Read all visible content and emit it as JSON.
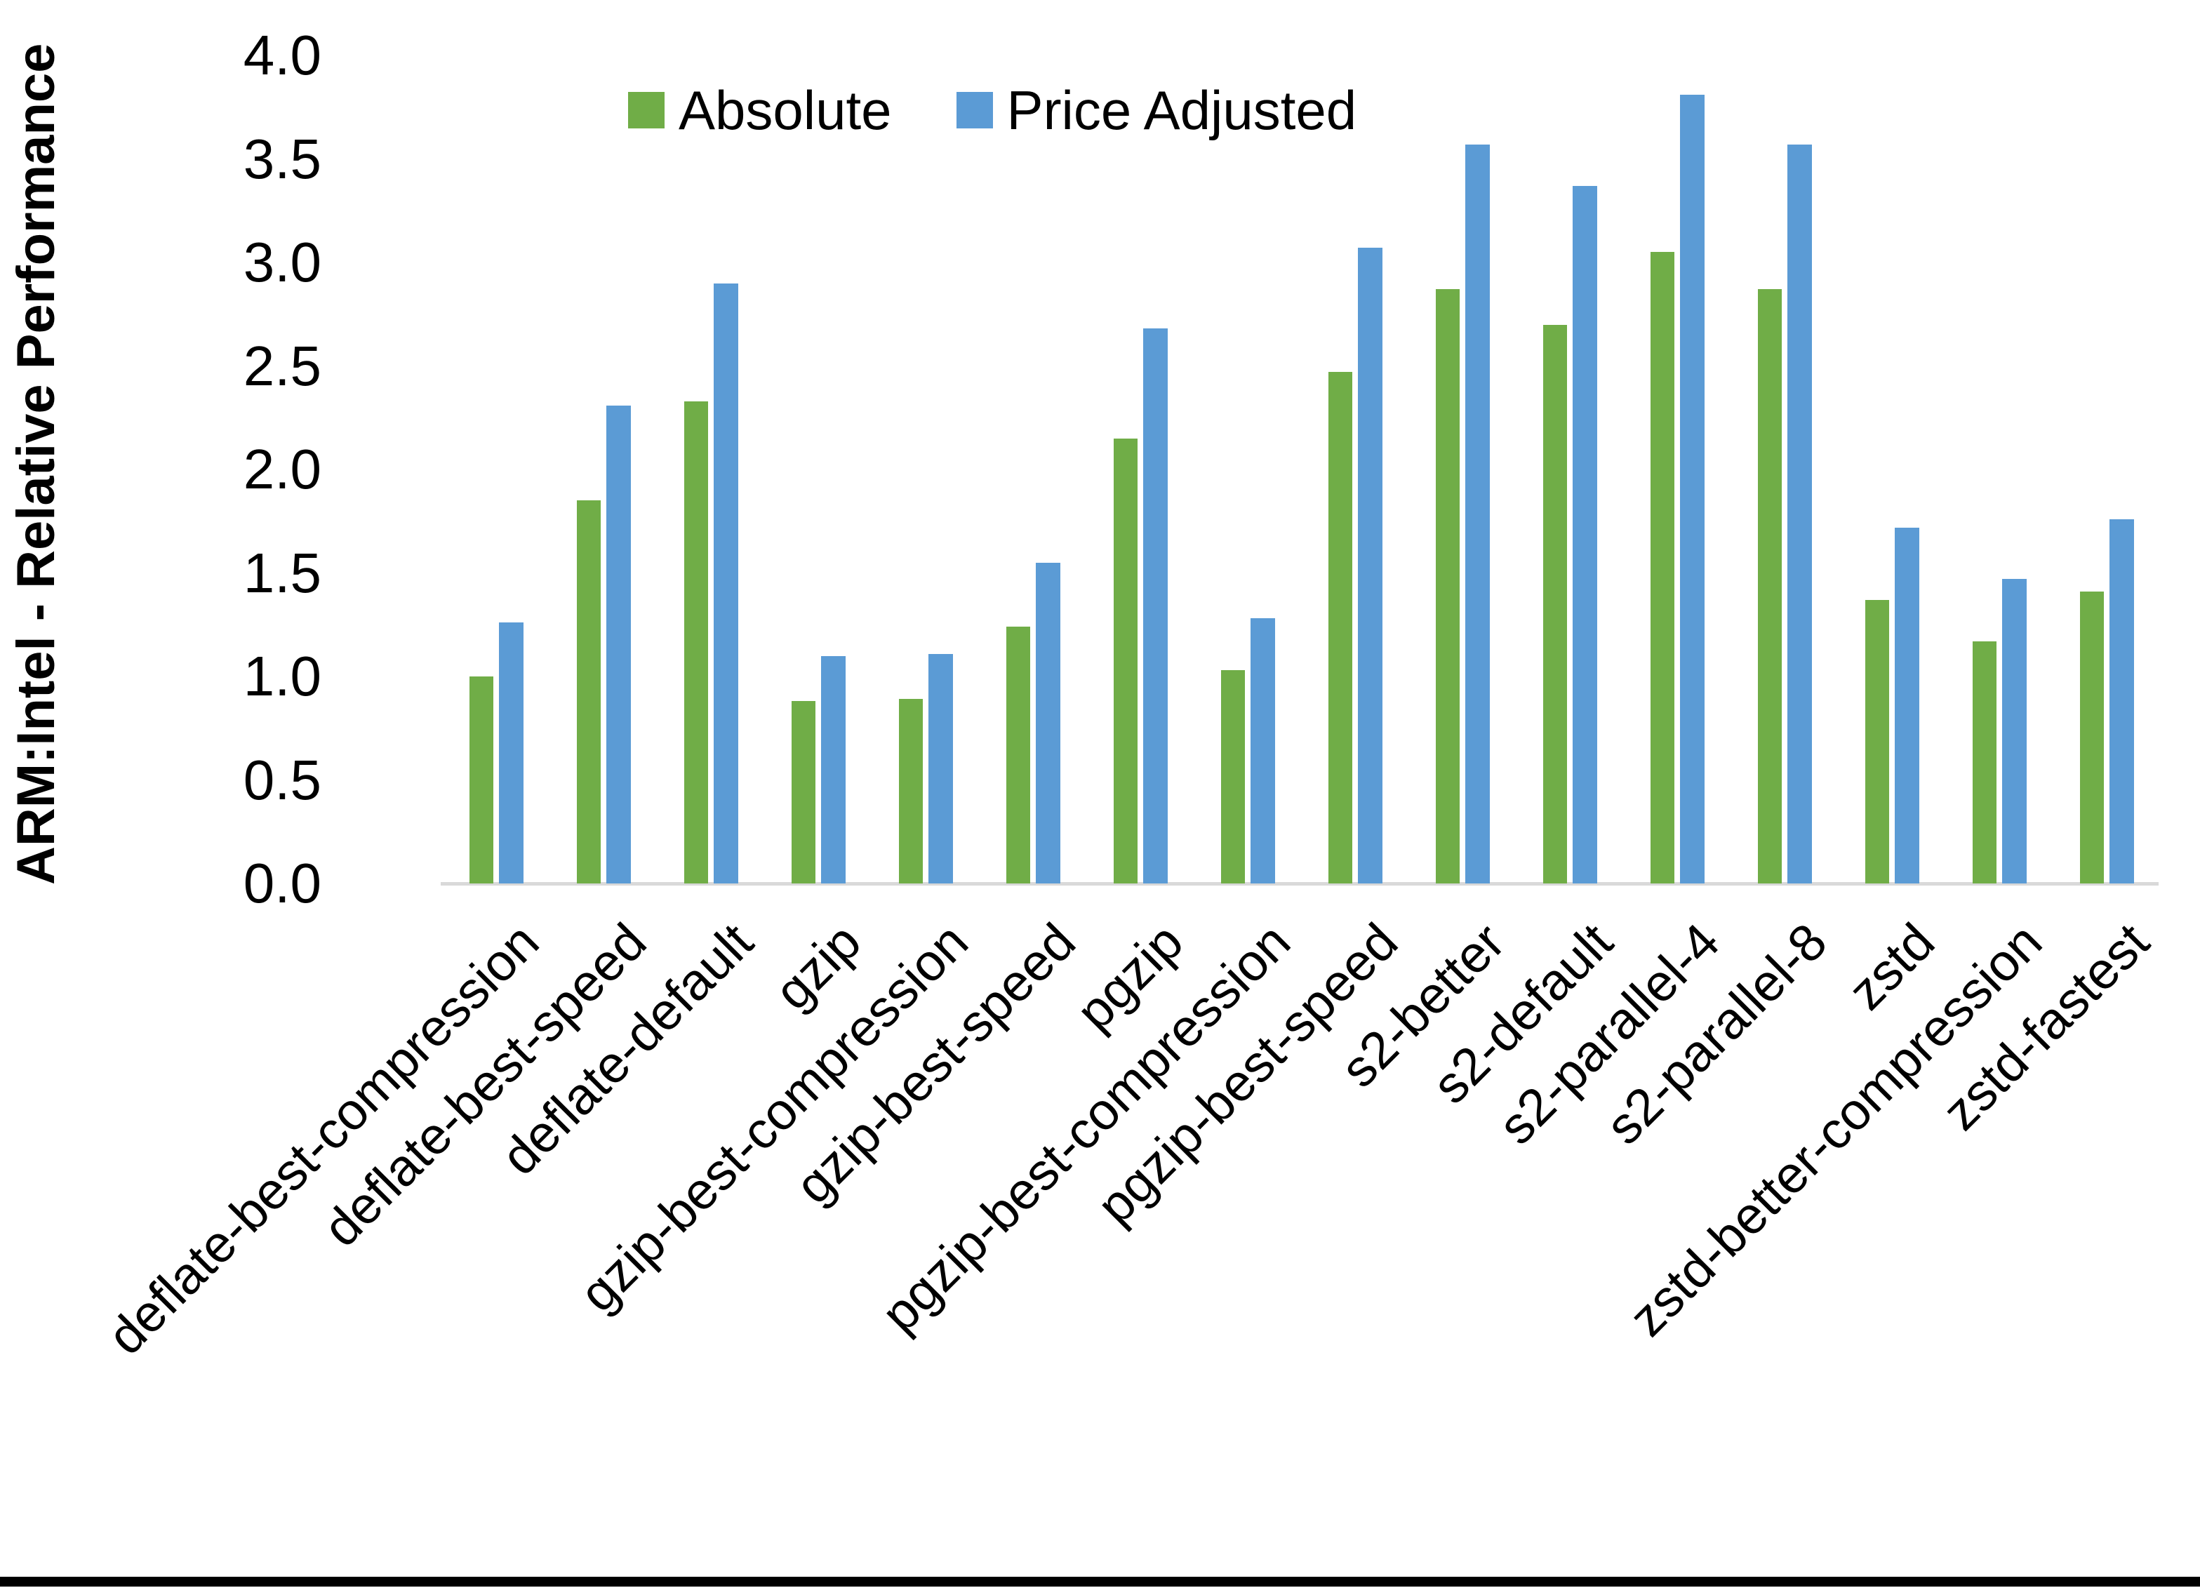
{
  "chart_data": {
    "type": "bar",
    "title": "",
    "xlabel": "",
    "ylabel": "ARM:Intel - Relative Performance",
    "ylim": [
      0.0,
      4.0
    ],
    "ytick_step": 0.5,
    "ytick_labels": [
      "0.0",
      "0.5",
      "1.0",
      "1.5",
      "2.0",
      "2.5",
      "3.0",
      "3.5",
      "4.0"
    ],
    "grid": false,
    "legend_position": "top-center",
    "categories": [
      "deflate-best-compression",
      "deflate-best-speed",
      "deflate-default",
      "gzip",
      "gzip-best-compression",
      "gzip-best-speed",
      "pgzip",
      "pgzip-best-compression",
      "pgzip-best-speed",
      "s2-better",
      "s2-default",
      "s2-parallel-4",
      "s2-parallel-8",
      "zstd",
      "zstd-better-compression",
      "zstd-fastest"
    ],
    "series": [
      {
        "name": "Absolute",
        "color": "#70AD47",
        "values": [
          1.0,
          1.85,
          2.33,
          0.88,
          0.89,
          1.24,
          2.15,
          1.03,
          2.47,
          2.87,
          2.7,
          3.05,
          2.87,
          1.37,
          1.17,
          1.41
        ]
      },
      {
        "name": "Price Adjusted",
        "color": "#5B9BD5",
        "values": [
          1.26,
          2.31,
          2.9,
          1.1,
          1.11,
          1.55,
          2.68,
          1.28,
          3.07,
          3.57,
          3.37,
          3.81,
          3.57,
          1.72,
          1.47,
          1.76
        ]
      }
    ]
  },
  "colors": {
    "axis_line": "#D9D9D9",
    "text": "#000000",
    "frame": "#000000"
  }
}
